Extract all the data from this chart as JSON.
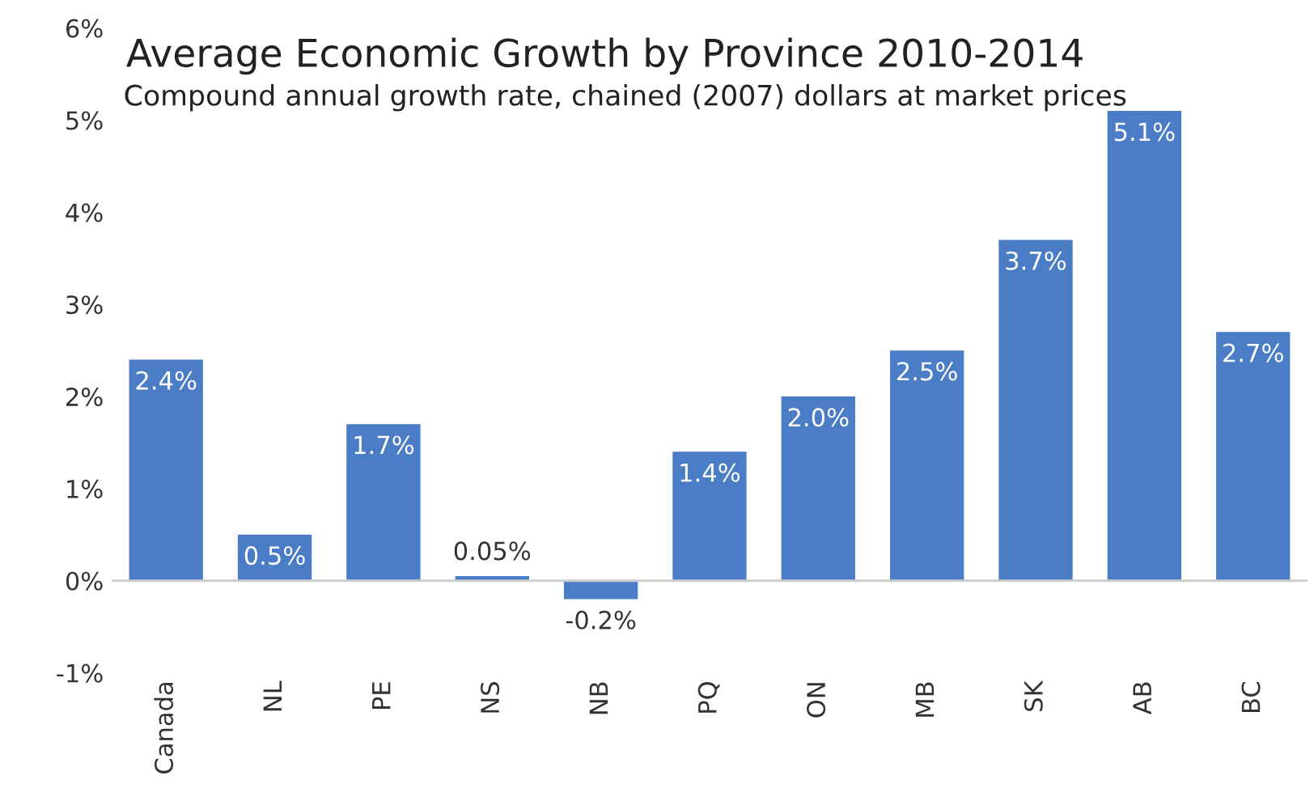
{
  "chart_data": {
    "type": "bar",
    "title": "Average Economic Growth by Province 2010-2014",
    "subtitle": "Compound annual growth rate, chained (2007) dollars at market prices",
    "categories": [
      "Canada",
      "NL",
      "PE",
      "NS",
      "NB",
      "PQ",
      "ON",
      "MB",
      "SK",
      "AB",
      "BC"
    ],
    "values": [
      2.4,
      0.5,
      1.7,
      0.05,
      -0.2,
      1.4,
      2.0,
      2.5,
      3.7,
      5.1,
      2.7
    ],
    "value_labels": [
      "2.4%",
      "0.5%",
      "1.7%",
      "0.05%",
      "-0.2%",
      "1.4%",
      "2.0%",
      "2.5%",
      "3.7%",
      "5.1%",
      "2.7%"
    ],
    "color": "#4a7dc5",
    "ylim": [
      -1,
      6
    ],
    "yticks": [
      {
        "value": -1,
        "label": "-1%"
      },
      {
        "value": 0,
        "label": "0%"
      },
      {
        "value": 1,
        "label": "1%"
      },
      {
        "value": 2,
        "label": "2%"
      },
      {
        "value": 3,
        "label": "3%"
      },
      {
        "value": 4,
        "label": "4%"
      },
      {
        "value": 5,
        "label": "5%"
      },
      {
        "value": 6,
        "label": "6%"
      }
    ],
    "ref_lines": [
      {
        "axis": "y",
        "value": 0,
        "color": "#cccccc"
      }
    ],
    "grid": false,
    "legend": false
  }
}
